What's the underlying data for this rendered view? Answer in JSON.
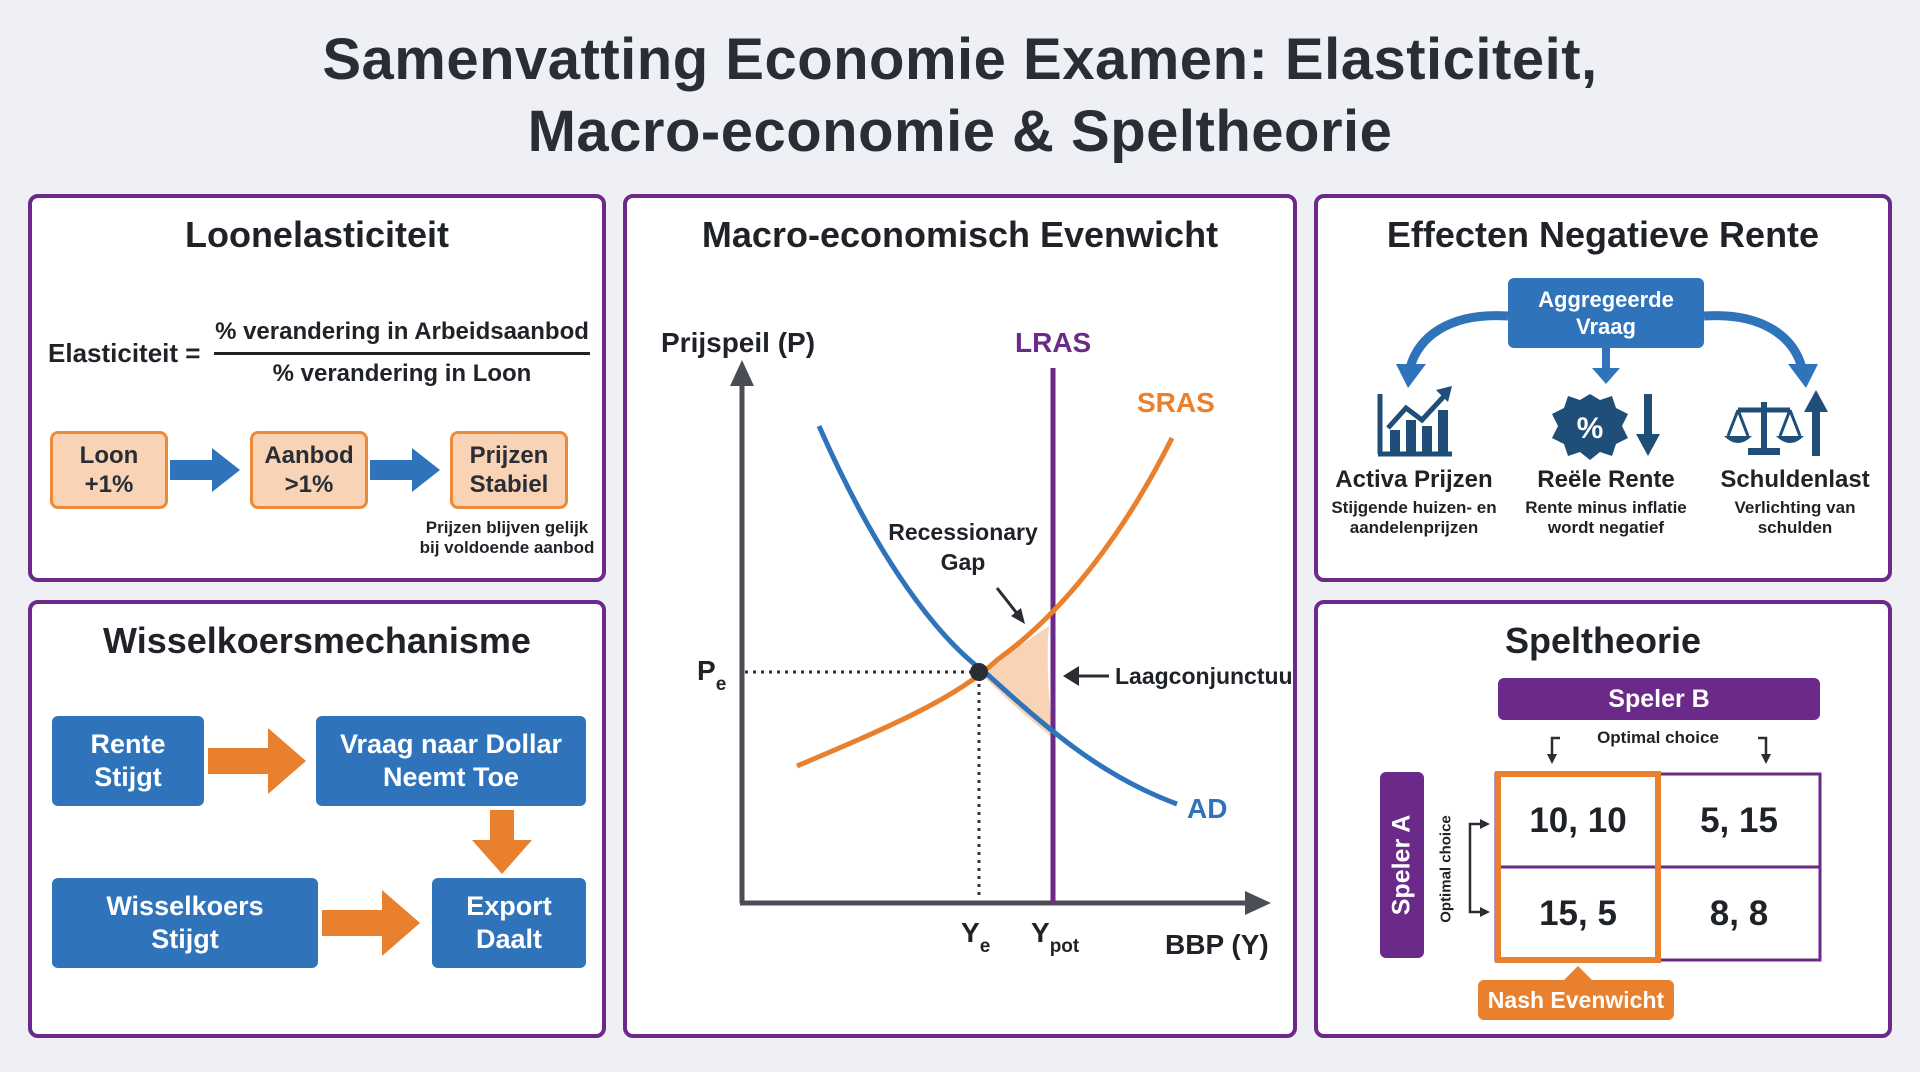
{
  "title": {
    "line1": "Samenvatting Economie Examen: Elasticiteit,",
    "line2": "Macro-economie & Speltheorie"
  },
  "loon": {
    "title": "Loonelasticiteit",
    "formula_label": "Elasticiteit =",
    "numerator": "% verandering in Arbeidsaanbod",
    "denominator": "% verandering in Loon",
    "box1_l1": "Loon",
    "box1_l2": "+1%",
    "box2_l1": "Aanbod",
    "box2_l2": ">1%",
    "box3_l1": "Prijzen",
    "box3_l2": "Stabiel",
    "note_l1": "Prijzen blijven gelijk",
    "note_l2": "bij voldoende aanbod"
  },
  "wissel": {
    "title": "Wisselkoersmechanisme",
    "rente_l1": "Rente",
    "rente_l2": "Stijgt",
    "vraag_l1": "Vraag naar Dollar",
    "vraag_l2": "Neemt Toe",
    "koers_l1": "Wisselkoers",
    "koers_l2": "Stijgt",
    "export_l1": "Export",
    "export_l2": "Daalt"
  },
  "macro": {
    "title": "Macro-economisch Evenwicht",
    "y_axis_label": "Prijspeil (P)",
    "x_axis_label": "BBP (Y)",
    "lras": "LRAS",
    "sras": "SRAS",
    "ad": "AD",
    "pe_main": "P",
    "pe_sub": "e",
    "ye_main": "Y",
    "ye_sub": "e",
    "ypot_main": "Y",
    "ypot_sub": "pot",
    "gap_l1": "Recessionary",
    "gap_l2": "Gap",
    "laag": "Laagconjunctuur",
    "colors": {
      "ad": "#2f74bb",
      "sras": "#e8802e",
      "lras": "#6b2a8a",
      "gap": "#f8d3b6"
    }
  },
  "rente": {
    "title": "Effecten Negatieve Rente",
    "ag_l1": "Aggregeerde",
    "ag_l2": "Vraag",
    "items": [
      {
        "icon": "bar-chart-up-icon",
        "title": "Activa Prijzen",
        "d1": "Stijgende huizen- en",
        "d2": "aandelenprijzen"
      },
      {
        "icon": "percent-badge-down-icon",
        "title": "Reële Rente",
        "d1": "Rente minus inflatie",
        "d2": "wordt negatief"
      },
      {
        "icon": "scale-up-icon",
        "title": "Schuldenlast",
        "d1": "Verlichting van",
        "d2": "schulden"
      }
    ]
  },
  "spel": {
    "title": "Speltheorie",
    "speler_b": "Speler B",
    "speler_a": "Speler A",
    "optimal_b": "Optimal choice",
    "optimal_a": "Optimal choice",
    "cells": [
      "10, 10",
      "5, 15",
      "15, 5",
      "8, 8"
    ],
    "nash": "Nash Evenwicht"
  }
}
